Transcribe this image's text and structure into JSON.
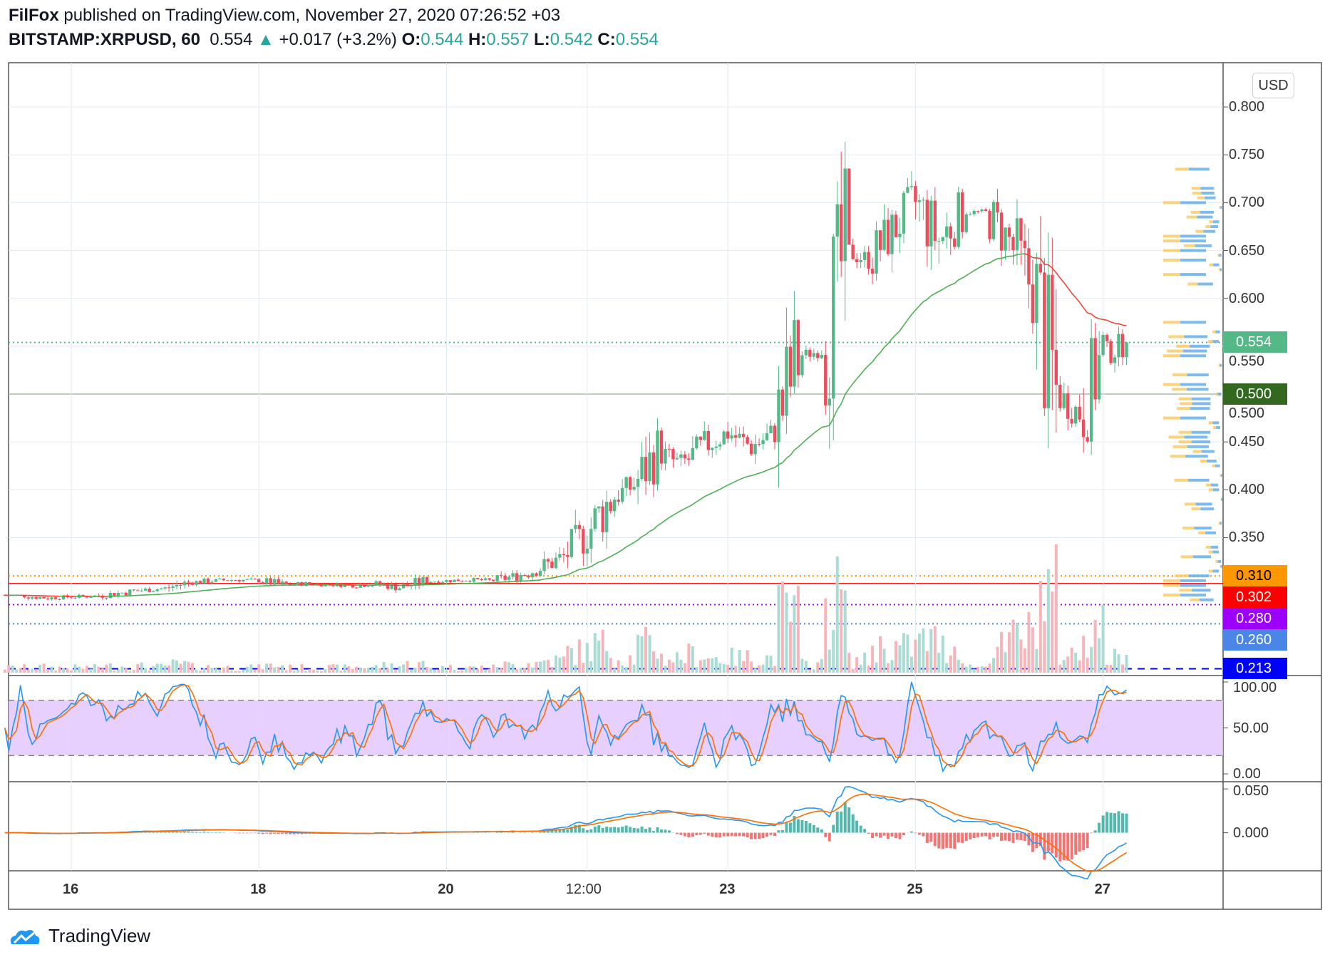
{
  "header": {
    "author": "FilFox",
    "published": " published on TradingView.com, November 27, 2020 07:26:52 +03",
    "symbol": "BITSTAMP:XRPUSD, 60",
    "last": "0.554",
    "change": "+0.017 (+3.2%)",
    "o_label": "O:",
    "o": "0.544",
    "h_label": "H:",
    "h": "0.557",
    "l_label": "L:",
    "l": "0.542",
    "c_label": "C:",
    "c": "0.554"
  },
  "currency_button": "USD",
  "logo_text": "TradingView",
  "colors": {
    "up": "#53b987",
    "down": "#eb4d5c",
    "ma": "#4caf50",
    "ma_down": "#f44336",
    "stoch_k": "#2196f3",
    "stoch_d": "#ff6d00",
    "band": "#e1c4fc"
  },
  "chart_data": {
    "type": "candlestick",
    "symbol": "BITSTAMP:XRPUSD",
    "interval": "60",
    "anchor_days": [
      15.25,
      15.5,
      15.75,
      16,
      16.25,
      16.5,
      16.75,
      17,
      17.25,
      17.5,
      17.75,
      18,
      18.25,
      18.5,
      18.75,
      19,
      19.25,
      19.5,
      19.75,
      20,
      20.25,
      20.5,
      20.75,
      21,
      21.25,
      21.5,
      21.75,
      22,
      22.25,
      22.5,
      22.75,
      23,
      23.25,
      23.5,
      23.75,
      24,
      24.25,
      24.5,
      24.75,
      25,
      25.25,
      25.5,
      25.75,
      26,
      26.25,
      26.5,
      26.75,
      27,
      27.25
    ],
    "anchor_close": [
      0.29,
      0.289,
      0.287,
      0.288,
      0.289,
      0.292,
      0.295,
      0.297,
      0.303,
      0.305,
      0.306,
      0.305,
      0.301,
      0.302,
      0.301,
      0.3,
      0.302,
      0.298,
      0.304,
      0.305,
      0.306,
      0.305,
      0.31,
      0.318,
      0.33,
      0.355,
      0.39,
      0.405,
      0.44,
      0.425,
      0.445,
      0.46,
      0.445,
      0.46,
      0.54,
      0.545,
      0.65,
      0.64,
      0.67,
      0.7,
      0.66,
      0.69,
      0.69,
      0.66,
      0.61,
      0.5,
      0.48,
      0.54,
      0.554
    ],
    "price_axis": {
      "ticks": [
        "0.800",
        "0.750",
        "0.700",
        "0.650",
        "0.600",
        "0.550",
        "0.500",
        "0.450",
        "0.400",
        "0.350"
      ],
      "ylim": [
        0.21,
        0.86
      ]
    },
    "x_ticks": [
      {
        "day": 16,
        "label": "16"
      },
      {
        "day": 18,
        "label": "18"
      },
      {
        "day": 20,
        "label": "20"
      },
      {
        "day": 21.5,
        "label": "12:00"
      },
      {
        "day": 23,
        "label": "23"
      },
      {
        "day": 25,
        "label": "25"
      },
      {
        "day": 27,
        "label": "27"
      }
    ],
    "levels": [
      {
        "value": 0.554,
        "label": "0.554",
        "color": "#53b987",
        "style": "dotted"
      },
      {
        "value": 0.5,
        "label": "0.500",
        "color": "#33691e",
        "style": "solid"
      },
      {
        "value": 0.31,
        "label": "0.310",
        "color": "#ff9800",
        "style": "dotted"
      },
      {
        "value": 0.302,
        "label": "0.302",
        "color": "#ff0000",
        "style": "solid"
      },
      {
        "value": 0.28,
        "label": "0.280",
        "color": "#9c00ff",
        "style": "dotted"
      },
      {
        "value": 0.26,
        "label": "0.260",
        "color": "#4a86e8",
        "style": "dotted"
      },
      {
        "value": 0.213,
        "label": "0.213",
        "color": "#0000ff",
        "style": "dashed"
      }
    ],
    "ma_period": 50,
    "stoch": {
      "ticks": [
        "100.00",
        "50.00",
        "0.00"
      ],
      "upper": 80,
      "lower": 20
    },
    "macd": {
      "ticks": [
        "0.050",
        "0.000"
      ],
      "fast": 12,
      "slow": 26,
      "signal": 9
    }
  }
}
